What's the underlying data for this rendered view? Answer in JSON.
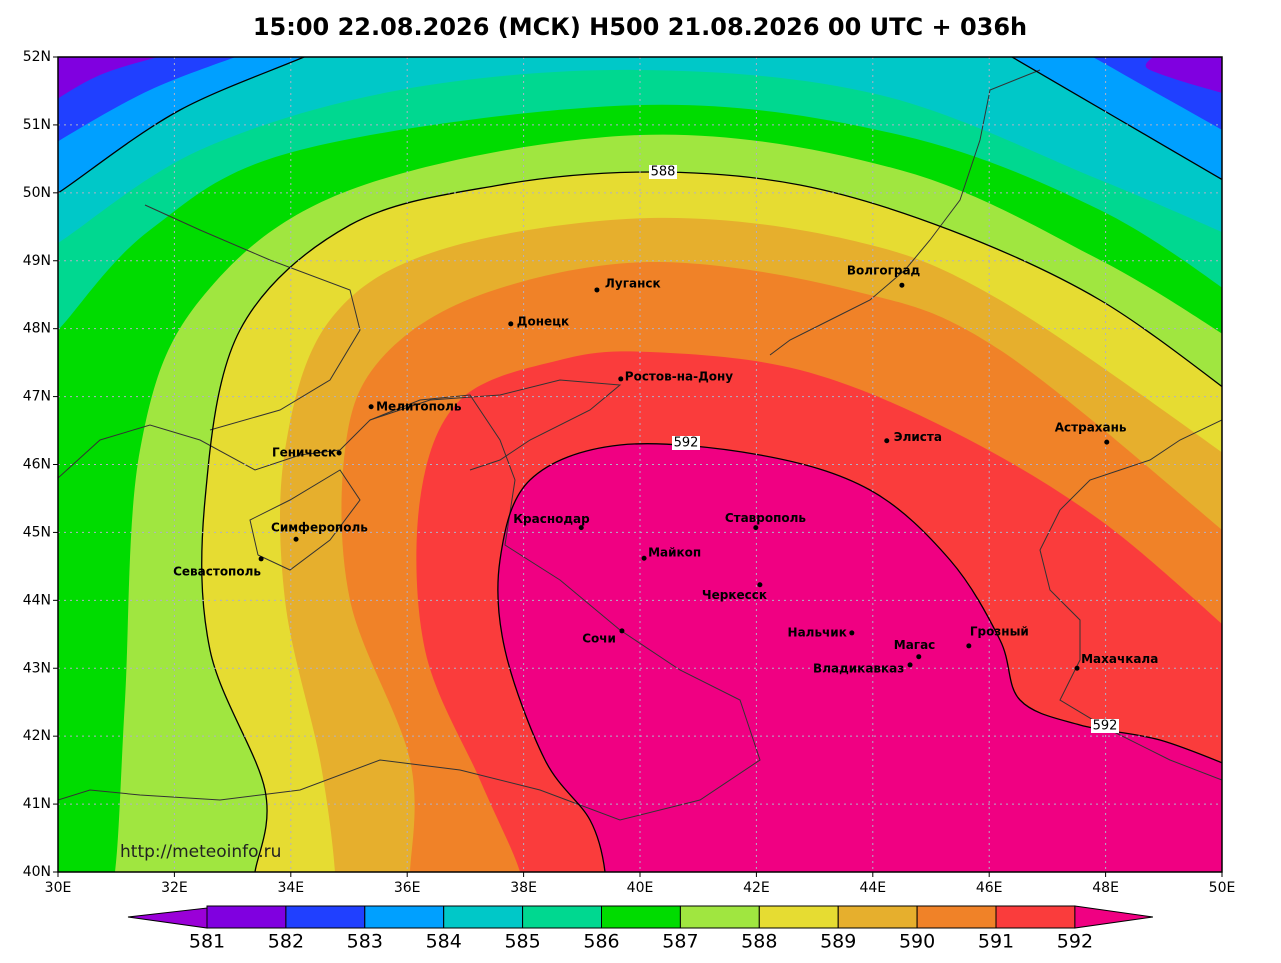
{
  "title": "15:00 22.08.2026 (МСК) H500  21.08.2026 00 UTC + 036h",
  "url": "http://meteoinfo.ru",
  "map": {
    "lonlim": [
      30,
      50
    ],
    "latlim": [
      40,
      52
    ],
    "lonticks": [
      {
        "value": 30,
        "label": "30E"
      },
      {
        "value": 32,
        "label": "32E"
      },
      {
        "value": 34,
        "label": "34E"
      },
      {
        "value": 36,
        "label": "36E"
      },
      {
        "value": 38,
        "label": "38E"
      },
      {
        "value": 40,
        "label": "40E"
      },
      {
        "value": 42,
        "label": "42E"
      },
      {
        "value": 44,
        "label": "44E"
      },
      {
        "value": 46,
        "label": "46E"
      },
      {
        "value": 48,
        "label": "48E"
      },
      {
        "value": 50,
        "label": "50E"
      }
    ],
    "latticks": [
      {
        "value": 40,
        "label": "40N"
      },
      {
        "value": 41,
        "label": "41N"
      },
      {
        "value": 42,
        "label": "42N"
      },
      {
        "value": 43,
        "label": "43N"
      },
      {
        "value": 44,
        "label": "44N"
      },
      {
        "value": 45,
        "label": "45N"
      },
      {
        "value": 46,
        "label": "46N"
      },
      {
        "value": 47,
        "label": "47N"
      },
      {
        "value": 48,
        "label": "48N"
      },
      {
        "value": 49,
        "label": "49N"
      },
      {
        "value": 50,
        "label": "50N"
      },
      {
        "value": 51,
        "label": "51N"
      },
      {
        "value": 52,
        "label": "52N"
      }
    ],
    "grid": true,
    "contour_labels": [
      588,
      592,
      592
    ],
    "cities": [
      {
        "name": "Волгоград",
        "lon": 44.5,
        "lat": 48.64
      },
      {
        "name": "Луганск",
        "lon": 39.26,
        "lat": 48.57
      },
      {
        "name": "Донецк",
        "lon": 37.78,
        "lat": 48.07
      },
      {
        "name": "Ростов-на-Дону",
        "lon": 39.67,
        "lat": 47.26
      },
      {
        "name": "Мелитополь",
        "lon": 35.38,
        "lat": 46.85
      },
      {
        "name": "Геническ",
        "lon": 34.83,
        "lat": 46.17
      },
      {
        "name": "Элиста",
        "lon": 44.24,
        "lat": 46.35
      },
      {
        "name": "Астрахань",
        "lon": 48.02,
        "lat": 46.33
      },
      {
        "name": "Симферополь",
        "lon": 34.09,
        "lat": 44.9
      },
      {
        "name": "Севастополь",
        "lon": 33.49,
        "lat": 44.61
      },
      {
        "name": "Краснодар",
        "lon": 38.99,
        "lat": 45.07
      },
      {
        "name": "Ставрополь",
        "lon": 41.99,
        "lat": 45.07
      },
      {
        "name": "Майкоп",
        "lon": 40.07,
        "lat": 44.62
      },
      {
        "name": "Черкесск",
        "lon": 42.06,
        "lat": 44.23
      },
      {
        "name": "Сочи",
        "lon": 39.69,
        "lat": 43.55
      },
      {
        "name": "Нальчик",
        "lon": 43.64,
        "lat": 43.52
      },
      {
        "name": "Грозный",
        "lon": 45.65,
        "lat": 43.33
      },
      {
        "name": "Магас",
        "lon": 44.79,
        "lat": 43.17
      },
      {
        "name": "Владикавказ",
        "lon": 44.64,
        "lat": 43.05
      },
      {
        "name": "Махачкала",
        "lon": 47.51,
        "lat": 43.0
      }
    ]
  },
  "colorbar": {
    "levels": [
      581,
      582,
      583,
      584,
      585,
      586,
      587,
      588,
      589,
      590,
      591,
      592
    ],
    "colors": [
      "#9a00d8",
      "#8000e0",
      "#2040ff",
      "#00a0ff",
      "#00c8c8",
      "#00d890",
      "#00dc00",
      "#a0e640",
      "#e6dc32",
      "#e6af2d",
      "#f08228",
      "#fa3c3c",
      "#f00082"
    ]
  }
}
